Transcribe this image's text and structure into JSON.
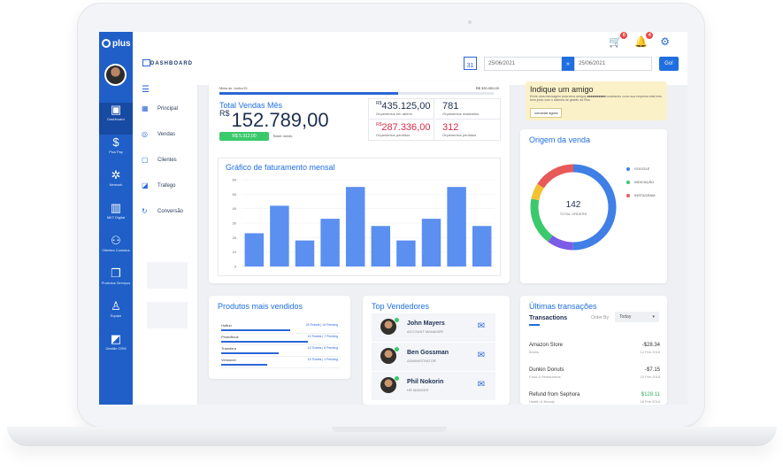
{
  "app": {
    "logo": "plus"
  },
  "header": {
    "page": "DASHBOARD",
    "calendar_day": "31",
    "date_from": "25/06/2021",
    "date_to": "25/06/2021",
    "go_label": "Go!",
    "cart_badge": "0",
    "bell_badge": "4"
  },
  "sidebar": {
    "items": [
      {
        "label": "Dashboard",
        "icon": "dashboard-icon",
        "glyph": "▣"
      },
      {
        "label": "Plus Pay",
        "icon": "dollar-icon",
        "glyph": "$"
      },
      {
        "label": "Network",
        "icon": "network-icon",
        "glyph": "✲"
      },
      {
        "label": "MKT Digital",
        "icon": "bar-chart-icon",
        "glyph": "▥"
      },
      {
        "label": "Clientes Contatos",
        "icon": "contacts-icon",
        "glyph": "⚇"
      },
      {
        "label": "Produtos Serviços",
        "icon": "box-icon",
        "glyph": "❒"
      },
      {
        "label": "Equipe",
        "icon": "team-icon",
        "glyph": "♙"
      },
      {
        "label": "Gestão CRM",
        "icon": "crm-icon",
        "glyph": "◩"
      }
    ]
  },
  "submenu": {
    "items": [
      {
        "label": "Principal",
        "glyph": "▦"
      },
      {
        "label": "Vendas",
        "glyph": "◎"
      },
      {
        "label": "Clientes",
        "glyph": "▢"
      },
      {
        "label": "Trafego",
        "glyph": "◪"
      },
      {
        "label": "Conversão",
        "glyph": "↻"
      }
    ]
  },
  "sales": {
    "meta_label": "Meta de Junho/21",
    "meta_value": "R$ 320.000,00",
    "meta_progress": 0.65,
    "title": "Total Vendas Mês",
    "currency": "R$",
    "total": "152.789,00",
    "ticket_value": "R$ 5.312,00",
    "ticket_label": "Ticket medio",
    "open_value": "435.125,00",
    "open_currency": "R$",
    "open_label": "Orçamentos em aberto",
    "done_value": "781",
    "done_label": "Orçamentos realizados",
    "lost_currency": "R$",
    "lost_value": "287.336,00",
    "lost_label": "Orçamentos perdidos",
    "lost_count": "312",
    "lost_count_label": "Orçamentos perdidos"
  },
  "chart_data": {
    "type": "bar",
    "title": "Gráfico de faturamento mensal",
    "ylim": [
      0,
      60
    ],
    "yticks": [
      "60",
      "50",
      "40",
      "30",
      "20",
      "10",
      "0"
    ],
    "values": [
      23,
      42,
      18,
      33,
      55,
      28,
      18,
      33,
      55,
      28
    ],
    "color": "#5b8ff0"
  },
  "friend": {
    "title": "Indique um amigo",
    "text": "Envie uma mensagem para seus amigos ■■■■■■■■■■ mostrando como sua empresa está indo bem junto com o sistema de gestão da Plus.",
    "button": "convidar agora"
  },
  "origin": {
    "title": "Origem da venda",
    "total": "142",
    "total_label": "TOTAL ORDERS",
    "legend": [
      {
        "label": "GOOGLE",
        "color": "#3f7fe6"
      },
      {
        "label": "INDICAÇÃO",
        "color": "#3ac96b"
      },
      {
        "label": "INSTAGRAM",
        "color": "#e85a5a"
      }
    ],
    "slices": [
      {
        "value": 0.5,
        "color": "#3f7fe6"
      },
      {
        "value": 0.1,
        "color": "#7b5ce6"
      },
      {
        "value": 0.18,
        "color": "#3ac96b"
      },
      {
        "value": 0.06,
        "color": "#f2c230"
      },
      {
        "value": 0.16,
        "color": "#e85a5a"
      }
    ]
  },
  "products": {
    "title": "Produtos mais vendidos",
    "rows": [
      {
        "name": "Hotfun",
        "tag": "25 Tickets | 10 Pending",
        "progress": 0.6
      },
      {
        "name": "PhotoBook",
        "tag": "10 Tickets | 7 Pending",
        "progress": 0.75
      },
      {
        "name": "Transfera",
        "tag": "15 Tickets | 8 Pending",
        "progress": 0.5
      },
      {
        "name": "Versioner",
        "tag": "15 Tickets | 1 Pending",
        "progress": 0.4
      }
    ]
  },
  "sellers": {
    "title": "Top Vendedores",
    "rows": [
      {
        "name": "John Mayers",
        "role": "ACCOUNT MANAGER"
      },
      {
        "name": "Ben Gossman",
        "role": "ADMINISTRATOR"
      },
      {
        "name": "Phil Nokorin",
        "role": "HR MANGER"
      }
    ]
  },
  "transactions": {
    "title": "Últimas transações",
    "tab": "Transactions",
    "order_label": "Order By",
    "order_value": "Today",
    "rows": [
      {
        "name": "Amazon Store",
        "cat": "Books",
        "amount": "-$28.34",
        "date": "12 Feb 2018",
        "positive": false
      },
      {
        "name": "Dunkin Donuts",
        "cat": "Food & Restaurants",
        "amount": "-$7.15",
        "date": "15 Feb 2018",
        "positive": false
      },
      {
        "name": "Refund from Sephora",
        "cat": "Health & Beauty",
        "amount": "$128.11",
        "date": "16 Feb 2018",
        "positive": true
      }
    ]
  }
}
